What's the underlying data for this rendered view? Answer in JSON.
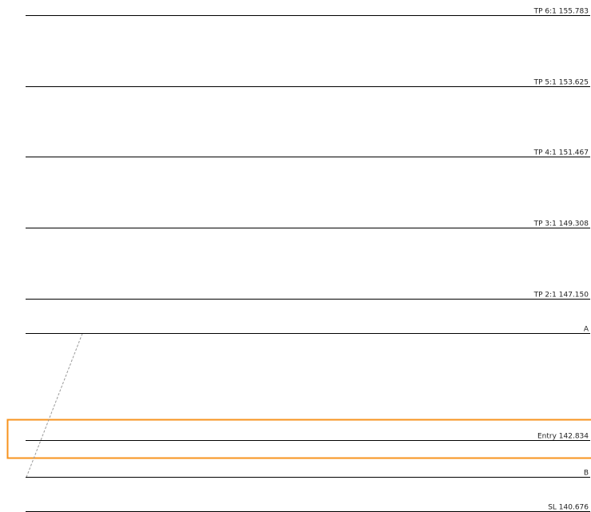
{
  "chart_data": {
    "type": "line",
    "title": "",
    "colors": {
      "level_line": "#000000",
      "label_text": "#222222",
      "highlight": "#f7931e",
      "trend": "#9a9a9a"
    },
    "levels": [
      {
        "key": "tp6",
        "label": "TP 6:1 155.783",
        "value": 155.783
      },
      {
        "key": "tp5",
        "label": "TP 5:1 153.625",
        "value": 153.625
      },
      {
        "key": "tp4",
        "label": "TP 4:1 151.467",
        "value": 151.467
      },
      {
        "key": "tp3",
        "label": "TP 3:1 149.308",
        "value": 149.308
      },
      {
        "key": "tp2",
        "label": "TP 2:1 147.150",
        "value": 147.15
      },
      {
        "key": "a",
        "label": "A",
        "value": 146.09
      },
      {
        "key": "entry",
        "label": "Entry 142.834",
        "value": 142.834,
        "highlight": true
      },
      {
        "key": "b",
        "label": "B",
        "value": 141.72
      },
      {
        "key": "sl",
        "label": "SL 140.676",
        "value": 140.676
      }
    ],
    "trend_line": {
      "style": "dashed",
      "from": "B",
      "to": "A"
    }
  }
}
